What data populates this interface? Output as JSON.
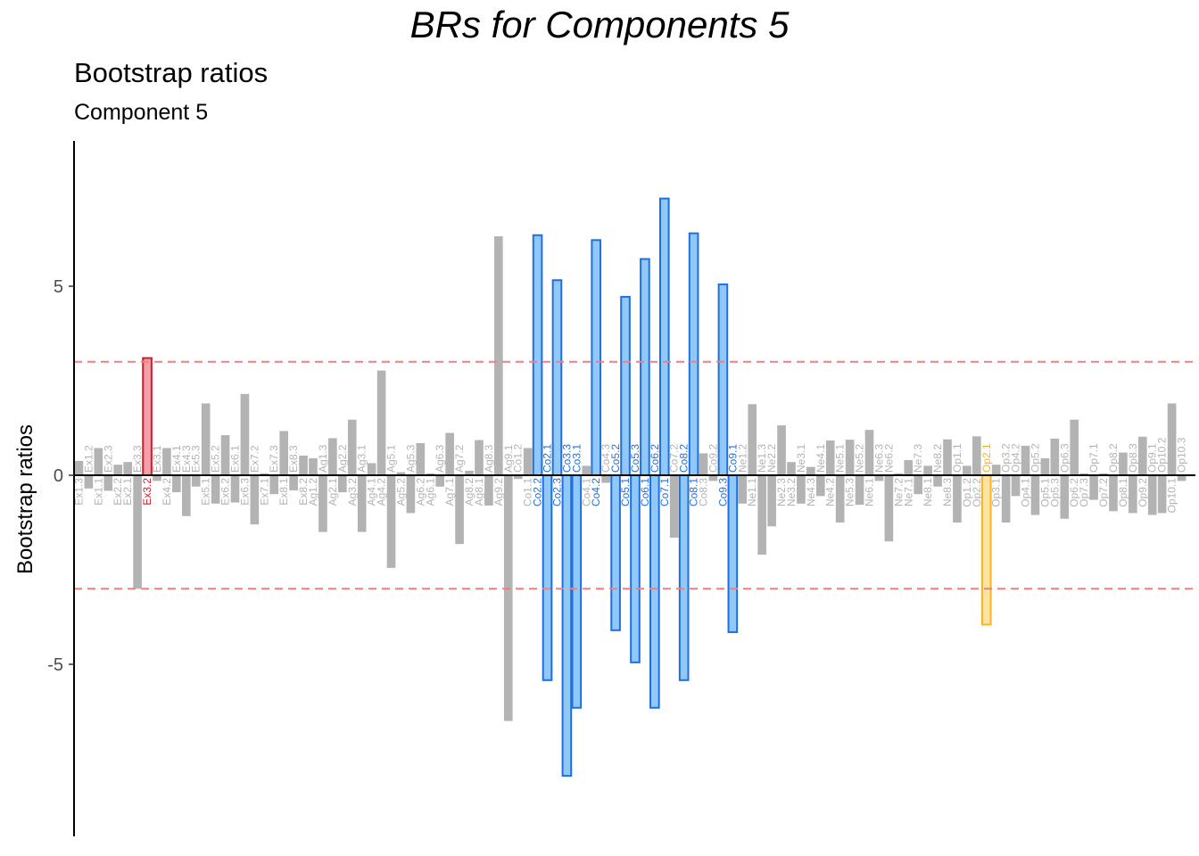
{
  "header": {
    "main_title": "BRs for Components 5",
    "title": "Bootstrap ratios",
    "subtitle": "Component 5"
  },
  "colors": {
    "neutral_bar": "#b3b3b3",
    "neutral_label": "#b3b3b3",
    "threshold_line": "#f08080",
    "zero_line": "#000000",
    "groups": {
      "Ex": {
        "fill": "#f4a0a8",
        "stroke": "#d7192b"
      },
      "Co": {
        "fill": "#90c8f8",
        "stroke": "#1f6fe0"
      },
      "Op": {
        "fill": "#fde2a0",
        "stroke": "#f2b52a"
      }
    }
  },
  "chart_data": {
    "type": "bar",
    "title": "Bootstrap ratios",
    "subtitle": "Component 5",
    "ylabel": "Bootstrap ratios",
    "ylim": [
      -9.5,
      8.9
    ],
    "yticks": [
      -5,
      0,
      5
    ],
    "thresholds": [
      3,
      -3
    ],
    "categories": [
      "Ex1.3",
      "Ex1.2",
      "Ex1.1",
      "Ex2.3",
      "Ex2.2",
      "Ex2.1",
      "Ex3.3",
      "Ex3.2",
      "Ex3.1",
      "Ex4.2",
      "Ex4.1",
      "Ex4.3",
      "Ex5.3",
      "Ex5.1",
      "Ex5.2",
      "Ex6.2",
      "Ex6.1",
      "Ex6.3",
      "Ex7.2",
      "Ex7.1",
      "Ex7.3",
      "Ex8.1",
      "Ex8.3",
      "Ex8.2",
      "Ag1.2",
      "Ag1.3",
      "Ag2.1",
      "Ag2.2",
      "Ag3.2",
      "Ag3.1",
      "Ag4.1",
      "Ag4.2",
      "Ag5.1",
      "Ag5.2",
      "Ag5.3",
      "Ag6.2",
      "Ag6.1",
      "Ag6.3",
      "Ag7.1",
      "Ag7.2",
      "Ag8.2",
      "Ag8.1",
      "Ag8.3",
      "Ag9.2",
      "Ag9.1",
      "Co1.2",
      "Co1.1",
      "Co2.2",
      "Co2.1",
      "Co2.3",
      "Co3.3",
      "Co3.1",
      "Co4.1",
      "Co4.2",
      "Co4.3",
      "Co5.2",
      "Co5.1",
      "Co5.3",
      "Co6.1",
      "Co6.2",
      "Co7.1",
      "Co7.2",
      "Co8.2",
      "Co8.1",
      "Co8.3",
      "Co9.2",
      "Co9.3",
      "Co9.1",
      "Ne1.2",
      "Ne1.1",
      "Ne1.3",
      "Ne2.2",
      "Ne2.3",
      "Ne3.2",
      "Ne3.1",
      "Ne4.3",
      "Ne4.1",
      "Ne4.2",
      "Ne5.1",
      "Ne5.3",
      "Ne5.2",
      "Ne6.1",
      "Ne6.3",
      "Ne6.2",
      "Ne7.2",
      "Ne7.1",
      "Ne7.3",
      "Ne8.1",
      "Ne8.2",
      "Ne8.3",
      "Op1.1",
      "Op1.2",
      "Op2.2",
      "Op2.1",
      "Op3.1",
      "Op3.2",
      "Op4.2",
      "Op4.1",
      "Op5.2",
      "Op5.1",
      "Op5.3",
      "Op6.3",
      "Op6.2",
      "Op7.3",
      "Op7.1",
      "Op7.2",
      "Op8.2",
      "Op8.1",
      "Op8.3",
      "Op9.2",
      "Op9.1",
      "Op10.2",
      "Op10.1",
      "Op10.3"
    ],
    "values": [
      0.38,
      -0.35,
      0.72,
      -0.41,
      0.28,
      0.35,
      -3.0,
      3.1,
      -0.15,
      0.72,
      -0.45,
      -1.08,
      -0.3,
      1.9,
      -0.75,
      1.06,
      -0.72,
      2.15,
      -1.3,
      0.05,
      -0.5,
      1.17,
      -0.4,
      0.52,
      0.45,
      -1.5,
      0.98,
      -0.45,
      1.47,
      -1.5,
      0.32,
      2.77,
      -2.45,
      0.08,
      -1.0,
      0.85,
      0.05,
      -0.3,
      1.12,
      -1.82,
      0.12,
      0.93,
      -0.8,
      6.32,
      -6.5,
      -0.1,
      0.72,
      6.35,
      -5.42,
      5.16,
      -7.95,
      -6.15,
      0.25,
      6.22,
      -0.2,
      -4.1,
      4.72,
      -4.95,
      5.72,
      -6.15,
      7.32,
      -1.65,
      -5.42,
      6.4,
      0.58,
      -0.15,
      5.05,
      -4.15,
      -0.75,
      1.88,
      -2.1,
      -1.35,
      1.32,
      0.35,
      -0.75,
      0.22,
      -0.55,
      0.92,
      -1.25,
      0.94,
      -0.78,
      1.2,
      -0.15,
      -1.75,
      0.05,
      0.4,
      -0.5,
      0.25,
      -0.3,
      0.95,
      -1.25,
      0.25,
      1.03,
      -3.95,
      0.28,
      -1.25,
      -0.55,
      0.78,
      -1.05,
      0.45,
      0.97,
      -1.15,
      1.47,
      0.05,
      -0.65,
      0.05,
      -0.95,
      0.6,
      -1.0,
      1.02,
      -1.05,
      -1.0,
      1.9,
      -0.15
    ],
    "groups": [
      "Ex",
      "Ex",
      "Ex",
      "Ex",
      "Ex",
      "Ex",
      "Ex",
      "Ex",
      "Ex",
      "Ex",
      "Ex",
      "Ex",
      "Ex",
      "Ex",
      "Ex",
      "Ex",
      "Ex",
      "Ex",
      "Ex",
      "Ex",
      "Ex",
      "Ex",
      "Ex",
      "Ex",
      "Ag",
      "Ag",
      "Ag",
      "Ag",
      "Ag",
      "Ag",
      "Ag",
      "Ag",
      "Ag",
      "Ag",
      "Ag",
      "Ag",
      "Ag",
      "Ag",
      "Ag",
      "Ag",
      "Ag",
      "Ag",
      "Ag",
      "Ag",
      "Ag",
      "Co",
      "Co",
      "Co",
      "Co",
      "Co",
      "Co",
      "Co",
      "Co",
      "Co",
      "Co",
      "Co",
      "Co",
      "Co",
      "Co",
      "Co",
      "Co",
      "Co",
      "Co",
      "Co",
      "Co",
      "Co",
      "Co",
      "Co",
      "Ne",
      "Ne",
      "Ne",
      "Ne",
      "Ne",
      "Ne",
      "Ne",
      "Ne",
      "Ne",
      "Ne",
      "Ne",
      "Ne",
      "Ne",
      "Ne",
      "Ne",
      "Ne",
      "Ne",
      "Ne",
      "Ne",
      "Ne",
      "Ne",
      "Ne",
      "Op",
      "Op",
      "Op",
      "Op",
      "Op",
      "Op",
      "Op",
      "Op",
      "Op",
      "Op",
      "Op",
      "Op",
      "Op",
      "Op",
      "Op",
      "Op",
      "Op",
      "Op",
      "Op",
      "Op",
      "Op",
      "Op",
      "Op",
      "Op"
    ],
    "highlighted_groups": [
      "Ex",
      "Co",
      "Op"
    ]
  }
}
